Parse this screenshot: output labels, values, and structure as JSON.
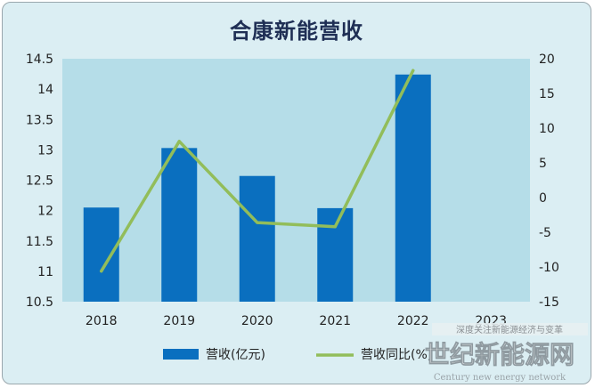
{
  "chart_data": {
    "type": "bar",
    "title": "合康新能营收",
    "categories": [
      "2018",
      "2019",
      "2020",
      "2021",
      "2022",
      "2023"
    ],
    "series": [
      {
        "name": "营收(亿元)",
        "type": "bar",
        "axis": "left",
        "color": "#0a6fbf",
        "values": [
          12.05,
          13.03,
          12.57,
          12.04,
          14.24,
          null
        ]
      },
      {
        "name": "营收同比(%)",
        "type": "line",
        "axis": "right",
        "color": "#92bd5a",
        "values": [
          -10.6,
          8.1,
          -3.6,
          -4.2,
          18.3,
          null
        ]
      }
    ],
    "ylim_left": [
      10.5,
      14.5
    ],
    "yticks_left": [
      "10.5",
      "11",
      "11.5",
      "12",
      "12.5",
      "13",
      "13.5",
      "14",
      "14.5"
    ],
    "ylim_right": [
      -15,
      20
    ],
    "yticks_right": [
      "-15",
      "-10",
      "-5",
      "0",
      "5",
      "10",
      "15",
      "20"
    ],
    "grid": false,
    "legend": "bottom",
    "plot_bg": "#b5dde8",
    "outer_bg": "#dbeef3"
  },
  "watermark": {
    "top_line": "深度关注新能源经济与变革",
    "logo_text": "世纪新能源网",
    "sub_line": "Century new energy network"
  }
}
